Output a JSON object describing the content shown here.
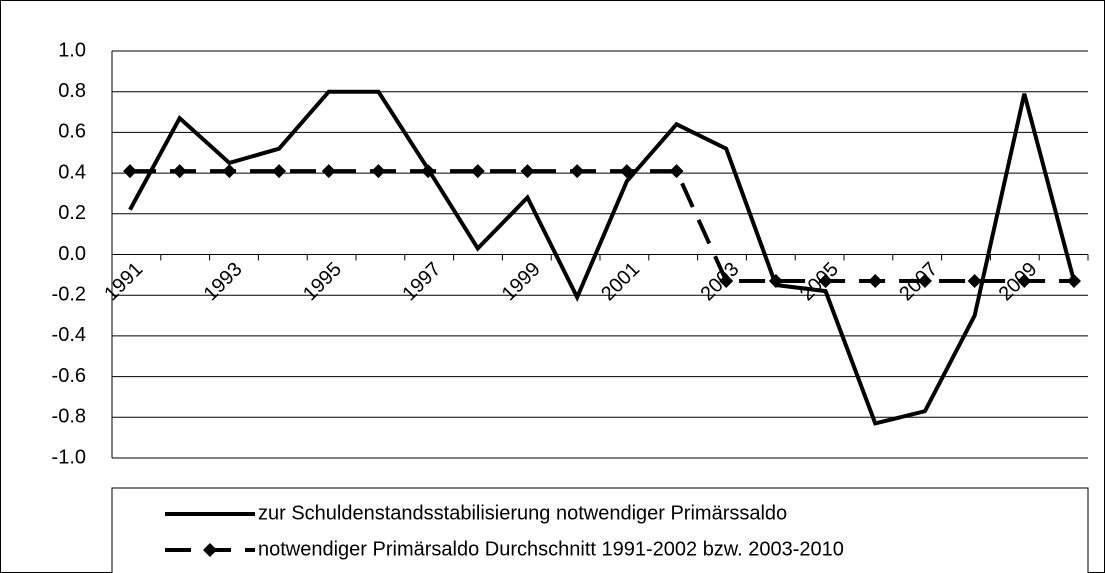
{
  "chart_data": {
    "type": "line",
    "categories": [
      "1991",
      null,
      "1993",
      null,
      "1995",
      null,
      "1997",
      null,
      "1999",
      null,
      "2001",
      null,
      "2003",
      null,
      "2005",
      null,
      "2007",
      null,
      "2009",
      null
    ],
    "series": [
      {
        "name": "zur Schuldenstandsstabilisierung notwendiger Primärssaldo",
        "color": "#000000",
        "style": "solid",
        "marker": "none",
        "values": [
          0.22,
          0.67,
          0.45,
          0.52,
          0.8,
          0.8,
          0.42,
          0.03,
          0.28,
          -0.21,
          0.36,
          0.64,
          0.52,
          -0.15,
          -0.18,
          -0.83,
          -0.77,
          -0.3,
          0.79,
          -0.13
        ]
      },
      {
        "name": "notwendiger Primärsaldo Durchschnitt 1991-2002 bzw. 2003-2010",
        "color": "#000000",
        "style": "dashed",
        "marker": "diamond",
        "values": [
          0.41,
          0.41,
          0.41,
          0.41,
          0.41,
          0.41,
          0.41,
          0.41,
          0.41,
          0.41,
          0.41,
          0.41,
          -0.13,
          -0.13,
          -0.13,
          -0.13,
          -0.13,
          -0.13,
          -0.13,
          -0.13
        ]
      }
    ],
    "ylim": [
      -1.0,
      1.0
    ],
    "yticks": [
      {
        "value": -1.0,
        "label": "-1.0"
      },
      {
        "value": -0.8,
        "label": "-0.8"
      },
      {
        "value": -0.6,
        "label": "-0.6"
      },
      {
        "value": -0.4,
        "label": "-0.4"
      },
      {
        "value": -0.2,
        "label": "-0.2"
      },
      {
        "value": 0,
        "label": "0.0"
      },
      {
        "value": 0.2,
        "label": "0.2"
      },
      {
        "value": 0.4,
        "label": "0.4"
      },
      {
        "value": 0.6,
        "label": "0.6"
      },
      {
        "value": 0.8,
        "label": "0.8"
      },
      {
        "value": 1.0,
        "label": "1.0"
      }
    ],
    "grid": true,
    "legend": "bottom"
  }
}
